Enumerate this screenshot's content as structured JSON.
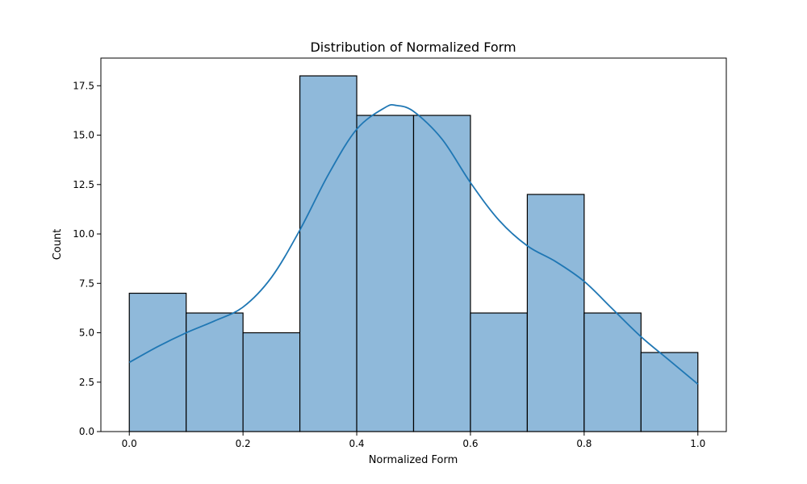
{
  "chart_data": {
    "type": "bar",
    "title": "Distribution of Normalized Form",
    "xlabel": "Normalized Form",
    "ylabel": "Count",
    "xlim": [
      -0.05,
      1.05
    ],
    "ylim": [
      0,
      18.9
    ],
    "xticks": [
      0.0,
      0.2,
      0.4,
      0.6,
      0.8,
      1.0
    ],
    "xtick_labels": [
      "0.0",
      "0.2",
      "0.4",
      "0.6",
      "0.8",
      "1.0"
    ],
    "yticks": [
      0.0,
      2.5,
      5.0,
      7.5,
      10.0,
      12.5,
      15.0,
      17.5
    ],
    "ytick_labels": [
      "0.0",
      "2.5",
      "5.0",
      "7.5",
      "10.0",
      "12.5",
      "15.0",
      "17.5"
    ],
    "bins": [
      {
        "x0": 0.0,
        "x1": 0.1,
        "count": 7
      },
      {
        "x0": 0.1,
        "x1": 0.2,
        "count": 6
      },
      {
        "x0": 0.2,
        "x1": 0.3,
        "count": 5
      },
      {
        "x0": 0.3,
        "x1": 0.4,
        "count": 18
      },
      {
        "x0": 0.4,
        "x1": 0.5,
        "count": 16
      },
      {
        "x0": 0.5,
        "x1": 0.6,
        "count": 16
      },
      {
        "x0": 0.6,
        "x1": 0.7,
        "count": 6
      },
      {
        "x0": 0.7,
        "x1": 0.8,
        "count": 12
      },
      {
        "x0": 0.8,
        "x1": 0.9,
        "count": 6
      },
      {
        "x0": 0.9,
        "x1": 1.0,
        "count": 4
      }
    ],
    "kde": {
      "x": [
        0.0,
        0.05,
        0.1,
        0.15,
        0.2,
        0.25,
        0.3,
        0.35,
        0.4,
        0.45,
        0.47,
        0.5,
        0.55,
        0.6,
        0.65,
        0.7,
        0.75,
        0.8,
        0.85,
        0.9,
        0.95,
        1.0
      ],
      "y": [
        3.5,
        4.3,
        5.0,
        5.6,
        6.3,
        7.8,
        10.2,
        13.0,
        15.3,
        16.4,
        16.5,
        16.2,
        14.8,
        12.6,
        10.7,
        9.4,
        8.6,
        7.6,
        6.2,
        4.8,
        3.6,
        2.4
      ]
    },
    "grid": false,
    "colors": {
      "bar_fill": "#8fb9da",
      "bar_edge": "#000000",
      "kde_line": "#1f77b4",
      "axes": "#000000",
      "background": "#ffffff"
    }
  }
}
